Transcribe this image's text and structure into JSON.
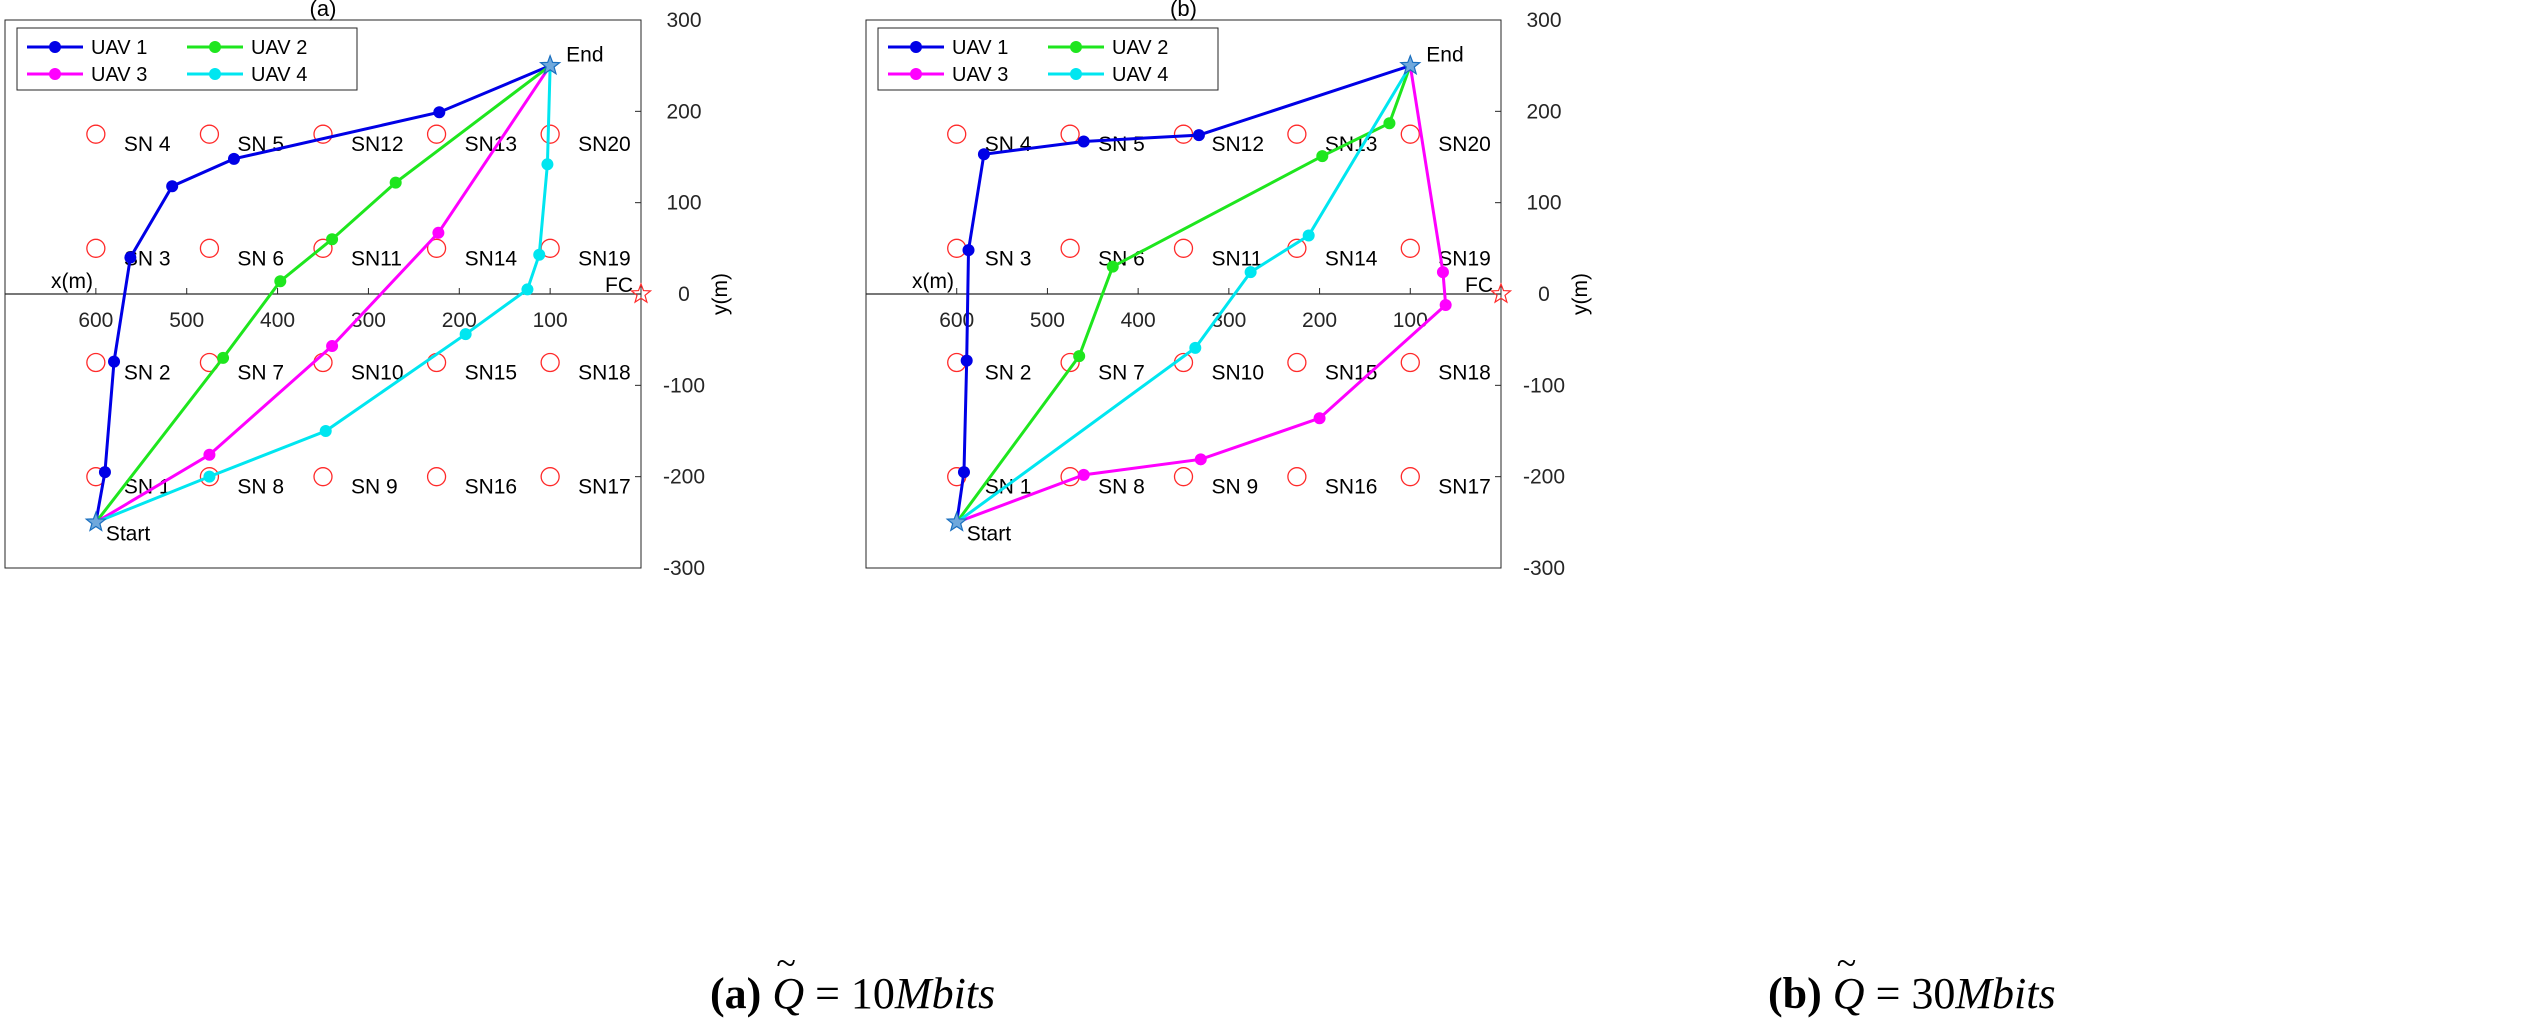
{
  "caption_a": {
    "tag": "(a)",
    "symbol": "Q",
    "eq": " = 10",
    "unit": "Mbits"
  },
  "caption_b": {
    "tag": "(b)",
    "symbol": "Q",
    "eq": " = 30",
    "unit": "Mbits"
  },
  "chart_data": [
    {
      "type": "line",
      "title": "(a)",
      "xlabel": "x(m)",
      "ylabel": "y(m)",
      "xlim": [
        700,
        0
      ],
      "ylim": [
        -300,
        300
      ],
      "x_ticks": [
        600,
        500,
        400,
        300,
        200,
        100
      ],
      "y_ticks": [
        300,
        200,
        100,
        0,
        -100,
        -200,
        -300
      ],
      "grid": false,
      "legend_position": "top-left",
      "sensor_nodes": [
        {
          "label": "SN  1",
          "x": 600,
          "y": -200
        },
        {
          "label": "SN  2",
          "x": 600,
          "y": -75
        },
        {
          "label": "SN  3",
          "x": 600,
          "y": 50
        },
        {
          "label": "SN  4",
          "x": 600,
          "y": 175
        },
        {
          "label": "SN  5",
          "x": 475,
          "y": 175
        },
        {
          "label": "SN  6",
          "x": 475,
          "y": 50
        },
        {
          "label": "SN  7",
          "x": 475,
          "y": -75
        },
        {
          "label": "SN  8",
          "x": 475,
          "y": -200
        },
        {
          "label": "SN  9",
          "x": 350,
          "y": -200
        },
        {
          "label": "SN10",
          "x": 350,
          "y": -75
        },
        {
          "label": "SN11",
          "x": 350,
          "y": 50
        },
        {
          "label": "SN12",
          "x": 350,
          "y": 175
        },
        {
          "label": "SN13",
          "x": 225,
          "y": 175
        },
        {
          "label": "SN14",
          "x": 225,
          "y": 50
        },
        {
          "label": "SN15",
          "x": 225,
          "y": -75
        },
        {
          "label": "SN16",
          "x": 225,
          "y": -200
        },
        {
          "label": "SN17",
          "x": 100,
          "y": -200
        },
        {
          "label": "SN18",
          "x": 100,
          "y": -75
        },
        {
          "label": "SN19",
          "x": 100,
          "y": 50
        },
        {
          "label": "SN20",
          "x": 100,
          "y": 175
        }
      ],
      "start": {
        "label": "Start",
        "x": 600,
        "y": -250
      },
      "end": {
        "label": "End",
        "x": 100,
        "y": 250
      },
      "fc": {
        "label": "FC",
        "x": 0,
        "y": 0
      },
      "series": [
        {
          "name": "UAV 1",
          "color": "#0000e6",
          "points": [
            [
              600,
              -250
            ],
            [
              590,
              -195
            ],
            [
              580,
              -74
            ],
            [
              562,
              40
            ],
            [
              516,
              118
            ],
            [
              448,
              148
            ],
            [
              222,
              199
            ],
            [
              100,
              250
            ]
          ]
        },
        {
          "name": "UAV 2",
          "color": "#1ee61e",
          "points": [
            [
              600,
              -250
            ],
            [
              460,
              -70
            ],
            [
              397,
              14
            ],
            [
              340,
              60
            ],
            [
              270,
              122
            ],
            [
              100,
              250
            ]
          ]
        },
        {
          "name": "UAV 3",
          "color": "#ff00ff",
          "points": [
            [
              600,
              -250
            ],
            [
              475,
              -176
            ],
            [
              340,
              -57
            ],
            [
              223,
              67
            ],
            [
              100,
              250
            ]
          ]
        },
        {
          "name": "UAV 4",
          "color": "#00e6f0",
          "points": [
            [
              600,
              -250
            ],
            [
              475,
              -200
            ],
            [
              347,
              -150
            ],
            [
              193,
              -44
            ],
            [
              125,
              5
            ],
            [
              112,
              43
            ],
            [
              103,
              142
            ],
            [
              100,
              250
            ]
          ]
        }
      ]
    },
    {
      "type": "line",
      "title": "(b)",
      "xlabel": "x(m)",
      "ylabel": "y(m)",
      "xlim": [
        700,
        0
      ],
      "ylim": [
        -300,
        300
      ],
      "x_ticks": [
        600,
        500,
        400,
        300,
        200,
        100
      ],
      "y_ticks": [
        300,
        200,
        100,
        0,
        -100,
        -200,
        -300
      ],
      "grid": false,
      "legend_position": "top-left",
      "sensor_nodes": [
        {
          "label": "SN  1",
          "x": 600,
          "y": -200
        },
        {
          "label": "SN  2",
          "x": 600,
          "y": -75
        },
        {
          "label": "SN  3",
          "x": 600,
          "y": 50
        },
        {
          "label": "SN  4",
          "x": 600,
          "y": 175
        },
        {
          "label": "SN  5",
          "x": 475,
          "y": 175
        },
        {
          "label": "SN  6",
          "x": 475,
          "y": 50
        },
        {
          "label": "SN  7",
          "x": 475,
          "y": -75
        },
        {
          "label": "SN  8",
          "x": 475,
          "y": -200
        },
        {
          "label": "SN  9",
          "x": 350,
          "y": -200
        },
        {
          "label": "SN10",
          "x": 350,
          "y": -75
        },
        {
          "label": "SN11",
          "x": 350,
          "y": 50
        },
        {
          "label": "SN12",
          "x": 350,
          "y": 175
        },
        {
          "label": "SN13",
          "x": 225,
          "y": 175
        },
        {
          "label": "SN14",
          "x": 225,
          "y": 50
        },
        {
          "label": "SN15",
          "x": 225,
          "y": -75
        },
        {
          "label": "SN16",
          "x": 225,
          "y": -200
        },
        {
          "label": "SN17",
          "x": 100,
          "y": -200
        },
        {
          "label": "SN18",
          "x": 100,
          "y": -75
        },
        {
          "label": "SN19",
          "x": 100,
          "y": 50
        },
        {
          "label": "SN20",
          "x": 100,
          "y": 175
        }
      ],
      "start": {
        "label": "Start",
        "x": 600,
        "y": -250
      },
      "end": {
        "label": "End",
        "x": 100,
        "y": 250
      },
      "fc": {
        "label": "FC",
        "x": 0,
        "y": 0
      },
      "series": [
        {
          "name": "UAV 1",
          "color": "#0000e6",
          "points": [
            [
              600,
              -250
            ],
            [
              592,
              -195
            ],
            [
              589,
              -73
            ],
            [
              587,
              48
            ],
            [
              570,
              153
            ],
            [
              460,
              167
            ],
            [
              333,
              174
            ],
            [
              100,
              250
            ]
          ]
        },
        {
          "name": "UAV 2",
          "color": "#1ee61e",
          "points": [
            [
              600,
              -250
            ],
            [
              465,
              -68
            ],
            [
              428,
              30
            ],
            [
              197,
              151
            ],
            [
              123,
              187
            ],
            [
              100,
              250
            ]
          ]
        },
        {
          "name": "UAV 3",
          "color": "#ff00ff",
          "points": [
            [
              600,
              -250
            ],
            [
              460,
              -198
            ],
            [
              331,
              -181
            ],
            [
              200,
              -136
            ],
            [
              61,
              -12
            ],
            [
              64,
              24
            ],
            [
              100,
              250
            ]
          ]
        },
        {
          "name": "UAV 4",
          "color": "#00e6f0",
          "points": [
            [
              600,
              -250
            ],
            [
              337,
              -59
            ],
            [
              276,
              24
            ],
            [
              212,
              64
            ],
            [
              100,
              250
            ]
          ]
        }
      ]
    }
  ]
}
